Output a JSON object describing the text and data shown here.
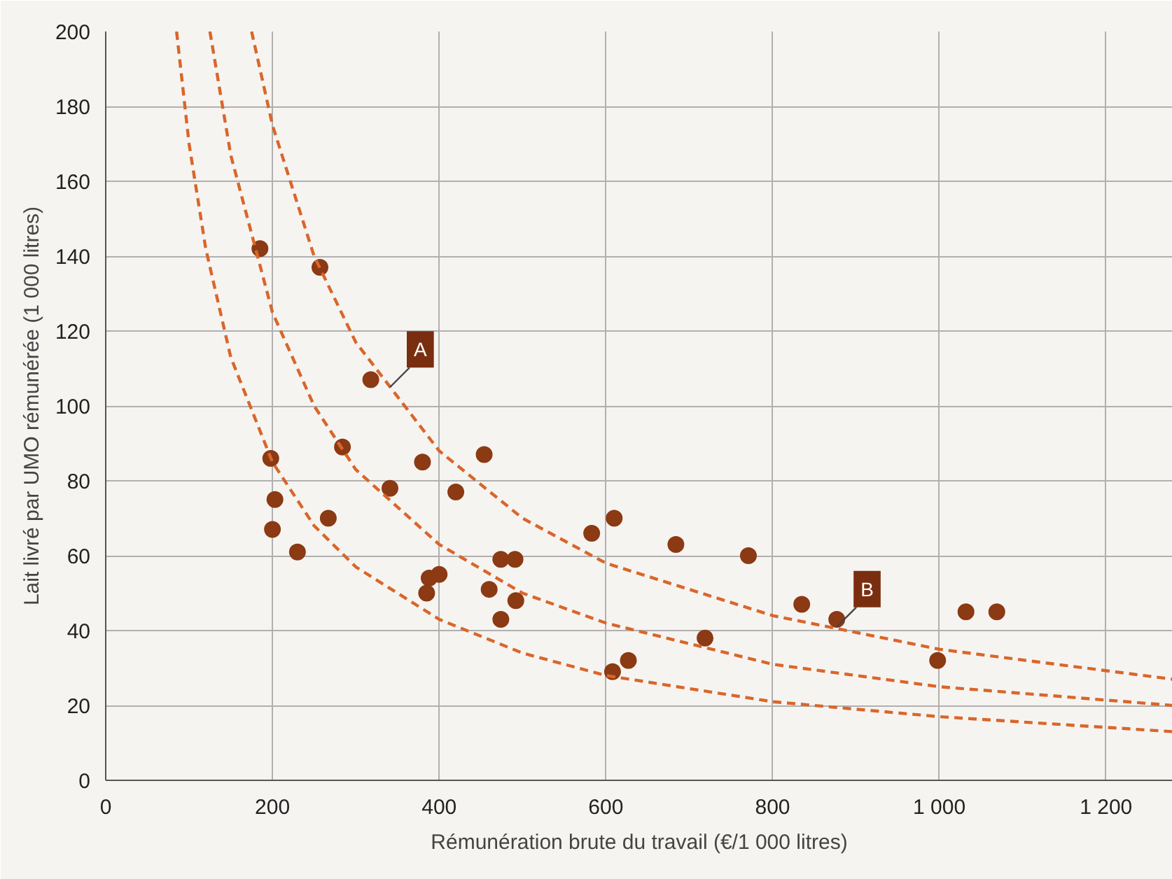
{
  "chart_data": {
    "type": "scatter",
    "xlabel": "Rémunération brute du travail (€/1 000 litres)",
    "ylabel": "Lait livré par UMO rémunérée (1 000 litres)",
    "xlim": [
      0,
      1280
    ],
    "ylim": [
      0,
      200
    ],
    "xticks": [
      0,
      200,
      400,
      600,
      800,
      {
        "value": 1000,
        "label": "1 000"
      },
      {
        "value": 1200,
        "label": "1 200"
      }
    ],
    "yticks": [
      0,
      20,
      40,
      60,
      80,
      100,
      120,
      140,
      160,
      180,
      200
    ],
    "grid": true,
    "series": [
      {
        "color": "#8b3a14",
        "marker": "circle",
        "x": [
          185,
          198,
          203,
          200,
          257,
          230,
          267,
          284,
          318,
          341,
          380,
          385,
          388,
          400,
          420,
          454,
          460,
          474,
          474,
          492,
          491,
          583,
          608,
          610,
          627,
          684,
          719,
          771,
          835,
          877,
          998,
          1032,
          1069
        ],
        "values": [
          142,
          86,
          75,
          67,
          137,
          61,
          70,
          89,
          107,
          78,
          85,
          50,
          54,
          55,
          77,
          87,
          51,
          59,
          43,
          48,
          59,
          66,
          29,
          70,
          32,
          63,
          38,
          60,
          47,
          43,
          32,
          45,
          45
        ]
      },
      {
        "type": "line",
        "color": "#d9662a",
        "line_style": "dashed",
        "marker": "none",
        "x": [
          85,
          100,
          120,
          150,
          200,
          250,
          300,
          400,
          500,
          600,
          800,
          1000,
          1280
        ],
        "values": [
          200,
          170,
          142,
          113,
          85,
          68,
          57,
          43,
          34,
          28,
          21,
          17,
          13
        ]
      },
      {
        "type": "line",
        "color": "#d9662a",
        "line_style": "dashed",
        "marker": "none",
        "x": [
          125,
          150,
          200,
          250,
          300,
          400,
          500,
          600,
          800,
          1000,
          1280
        ],
        "values": [
          200,
          167,
          125,
          100,
          83,
          63,
          50,
          42,
          31,
          25,
          20
        ]
      },
      {
        "type": "line",
        "color": "#d9662a",
        "line_style": "dashed",
        "marker": "none",
        "x": [
          175,
          200,
          250,
          300,
          400,
          500,
          600,
          800,
          1000,
          1280
        ],
        "values": [
          200,
          175,
          140,
          117,
          88,
          70,
          58,
          44,
          35,
          27
        ]
      }
    ],
    "annotations": [
      {
        "text": "A",
        "x": 341,
        "y": 105
      },
      {
        "text": "B",
        "x": 877,
        "y": 41
      }
    ]
  }
}
